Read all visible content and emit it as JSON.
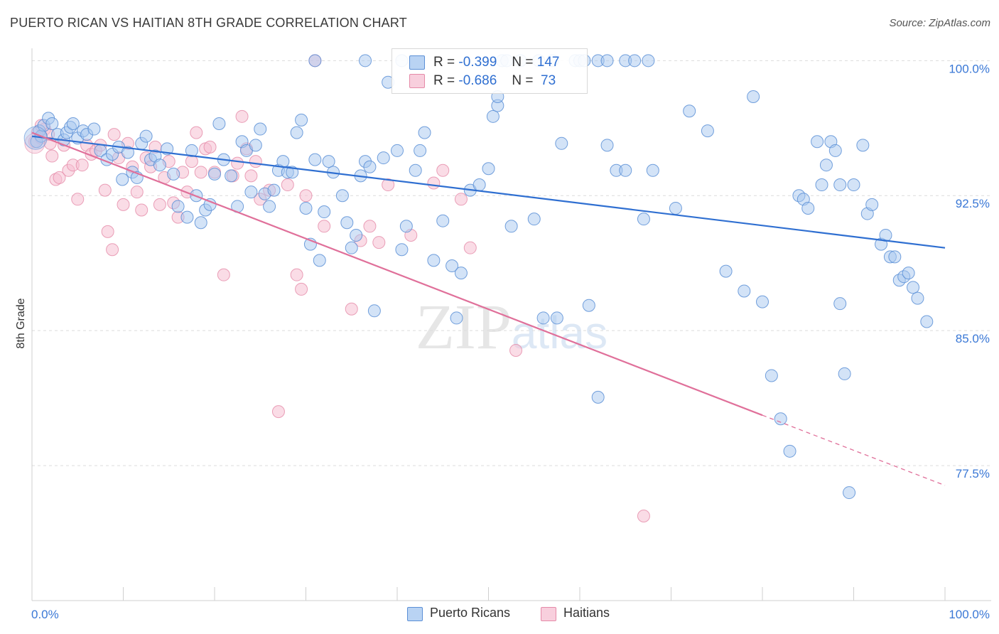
{
  "title": "PUERTO RICAN VS HAITIAN 8TH GRADE CORRELATION CHART",
  "source": "Source: ZipAtlas.com",
  "watermark": "ZIPatlas",
  "colors": {
    "blue_fill": "#a8c8f0",
    "blue_stroke": "#5b8fd6",
    "blue_line": "#2f6fd1",
    "pink_fill": "#f6bfd2",
    "pink_stroke": "#e58aa8",
    "pink_line": "#e0709a",
    "axis_text": "#3a78d6",
    "grid": "#dcdcdc"
  },
  "legend_top": {
    "rows": [
      {
        "r_label": "R =",
        "r_value": "-0.399",
        "n_label": "N =",
        "n_value": "147"
      },
      {
        "r_label": "R =",
        "r_value": "-0.686",
        "n_label": "N =",
        "n_value": " 73"
      }
    ]
  },
  "legend_bottom": [
    "Puerto Ricans",
    "Haitians"
  ],
  "chart_data": {
    "type": "scatter",
    "title": "PUERTO RICAN VS HAITIAN 8TH GRADE CORRELATION CHART",
    "xlabel": "",
    "ylabel": "8th Grade",
    "xlim": [
      0,
      100
    ],
    "ylim": [
      70.0,
      101.0
    ],
    "x_tick_labels": [
      "0.0%",
      "100.0%"
    ],
    "y_ticks": [
      100.0,
      92.5,
      85.0,
      77.5
    ],
    "y_tick_labels": [
      "100.0%",
      "92.5%",
      "85.0%",
      "77.5%"
    ],
    "grid": true,
    "legend_position": "top-center",
    "series": [
      {
        "name": "Puerto Ricans",
        "r": -0.399,
        "n": 147,
        "trend": {
          "x": [
            0,
            100
          ],
          "y": [
            95.8,
            89.6
          ]
        },
        "points": [
          [
            0.5,
            95.5
          ],
          [
            0.8,
            96.1
          ],
          [
            1.0,
            95.8
          ],
          [
            1.3,
            96.4
          ],
          [
            1.8,
            96.8
          ],
          [
            2.2,
            96.5
          ],
          [
            2.8,
            95.9
          ],
          [
            3.5,
            95.6
          ],
          [
            3.8,
            96.0
          ],
          [
            4.2,
            96.3
          ],
          [
            4.5,
            96.5
          ],
          [
            5.0,
            95.7
          ],
          [
            5.6,
            96.1
          ],
          [
            6.0,
            95.9
          ],
          [
            6.8,
            96.2
          ],
          [
            7.5,
            95.0
          ],
          [
            8.2,
            94.5
          ],
          [
            8.8,
            94.8
          ],
          [
            9.5,
            95.2
          ],
          [
            9.9,
            93.4
          ],
          [
            10.5,
            94.9
          ],
          [
            11.0,
            93.8
          ],
          [
            11.5,
            93.5
          ],
          [
            12.0,
            95.4
          ],
          [
            12.5,
            95.8
          ],
          [
            13.0,
            94.5
          ],
          [
            13.5,
            94.7
          ],
          [
            14.0,
            94.2
          ],
          [
            14.8,
            95.1
          ],
          [
            15.5,
            93.7
          ],
          [
            16.0,
            91.9
          ],
          [
            17.0,
            91.3
          ],
          [
            17.5,
            95.0
          ],
          [
            18.0,
            92.5
          ],
          [
            18.5,
            91.0
          ],
          [
            19.0,
            91.7
          ],
          [
            19.5,
            92.0
          ],
          [
            20.0,
            93.7
          ],
          [
            20.5,
            96.5
          ],
          [
            21.0,
            94.5
          ],
          [
            21.8,
            93.6
          ],
          [
            22.5,
            91.9
          ],
          [
            23.0,
            95.5
          ],
          [
            23.5,
            95.0
          ],
          [
            24.0,
            92.7
          ],
          [
            24.5,
            95.3
          ],
          [
            25.0,
            96.2
          ],
          [
            25.5,
            92.6
          ],
          [
            26.0,
            91.9
          ],
          [
            26.5,
            92.8
          ],
          [
            27.0,
            93.9
          ],
          [
            27.5,
            94.4
          ],
          [
            28.0,
            93.8
          ],
          [
            28.5,
            93.8
          ],
          [
            29.0,
            96.0
          ],
          [
            29.5,
            96.7
          ],
          [
            30.0,
            91.8
          ],
          [
            30.5,
            89.8
          ],
          [
            31.0,
            94.5
          ],
          [
            31.5,
            88.9
          ],
          [
            32.0,
            91.6
          ],
          [
            32.5,
            94.4
          ],
          [
            33.0,
            93.8
          ],
          [
            34.0,
            92.5
          ],
          [
            34.5,
            91.0
          ],
          [
            35.0,
            89.6
          ],
          [
            35.5,
            90.3
          ],
          [
            36.0,
            93.6
          ],
          [
            36.5,
            94.4
          ],
          [
            37.0,
            94.1
          ],
          [
            37.5,
            86.1
          ],
          [
            38.5,
            94.6
          ],
          [
            39.0,
            98.8
          ],
          [
            40.0,
            95.0
          ],
          [
            40.5,
            89.5
          ],
          [
            41.0,
            90.8
          ],
          [
            42.0,
            93.9
          ],
          [
            42.5,
            95.0
          ],
          [
            43.0,
            96.0
          ],
          [
            44.0,
            88.9
          ],
          [
            45.0,
            91.1
          ],
          [
            46.0,
            88.6
          ],
          [
            46.5,
            85.7
          ],
          [
            47.0,
            88.2
          ],
          [
            48.0,
            92.8
          ],
          [
            49.0,
            93.1
          ],
          [
            50.0,
            94.0
          ],
          [
            50.5,
            96.9
          ],
          [
            51.0,
            97.5
          ],
          [
            51.5,
            100.0
          ],
          [
            52.0,
            100.0
          ],
          [
            53.5,
            100.0
          ],
          [
            55.5,
            100.0
          ],
          [
            57.0,
            100.0
          ],
          [
            59.5,
            100.0
          ],
          [
            60.0,
            100.0
          ],
          [
            60.5,
            100.0
          ],
          [
            62.0,
            100.0
          ],
          [
            63.0,
            100.0
          ],
          [
            65.0,
            100.0
          ],
          [
            66.0,
            100.0
          ],
          [
            67.5,
            100.0
          ],
          [
            40.5,
            100.0
          ],
          [
            31.0,
            100.0
          ],
          [
            36.5,
            100.0
          ],
          [
            51.0,
            98.0
          ],
          [
            52.5,
            90.8
          ],
          [
            55.0,
            91.2
          ],
          [
            56.0,
            85.7
          ],
          [
            57.5,
            85.7
          ],
          [
            58.0,
            95.4
          ],
          [
            61.0,
            86.4
          ],
          [
            62.0,
            81.3
          ],
          [
            63.0,
            95.3
          ],
          [
            64.0,
            93.9
          ],
          [
            65.0,
            93.9
          ],
          [
            67.0,
            91.2
          ],
          [
            68.0,
            93.9
          ],
          [
            70.5,
            91.8
          ],
          [
            72.0,
            97.2
          ],
          [
            74.0,
            96.1
          ],
          [
            76.0,
            88.3
          ],
          [
            78.0,
            87.2
          ],
          [
            79.0,
            98.0
          ],
          [
            80.0,
            86.6
          ],
          [
            81.0,
            82.5
          ],
          [
            82.0,
            80.1
          ],
          [
            83.0,
            78.3
          ],
          [
            84.0,
            92.5
          ],
          [
            84.5,
            92.3
          ],
          [
            85.0,
            91.8
          ],
          [
            86.0,
            95.5
          ],
          [
            86.5,
            93.1
          ],
          [
            87.0,
            94.2
          ],
          [
            87.5,
            95.5
          ],
          [
            88.0,
            95.0
          ],
          [
            88.5,
            93.1
          ],
          [
            89.0,
            82.6
          ],
          [
            89.5,
            76.0
          ],
          [
            90.0,
            93.1
          ],
          [
            91.0,
            95.3
          ],
          [
            91.5,
            91.5
          ],
          [
            92.0,
            92.0
          ],
          [
            93.0,
            89.8
          ],
          [
            93.5,
            90.3
          ],
          [
            94.0,
            89.1
          ],
          [
            94.5,
            89.1
          ],
          [
            95.0,
            87.8
          ],
          [
            95.5,
            88.0
          ],
          [
            96.0,
            88.2
          ],
          [
            96.5,
            87.4
          ],
          [
            97.0,
            86.8
          ],
          [
            98.0,
            85.5
          ],
          [
            88.5,
            86.5
          ]
        ]
      },
      {
        "name": "Haitians",
        "r": -0.686,
        "n": 73,
        "trend": {
          "x": [
            0,
            80
          ],
          "y": [
            96.0,
            80.3
          ]
        },
        "trend_dashed": {
          "x": [
            80,
            100
          ],
          "y": [
            80.3,
            76.4
          ]
        },
        "points": [
          [
            0.3,
            95.5
          ],
          [
            0.6,
            96.0
          ],
          [
            1.0,
            95.7
          ],
          [
            1.4,
            96.2
          ],
          [
            1.8,
            95.9
          ],
          [
            2.2,
            94.7
          ],
          [
            2.6,
            93.4
          ],
          [
            3.0,
            93.5
          ],
          [
            3.5,
            95.3
          ],
          [
            4.0,
            93.9
          ],
          [
            4.5,
            94.2
          ],
          [
            5.0,
            92.3
          ],
          [
            5.5,
            94.2
          ],
          [
            6.0,
            95.3
          ],
          [
            6.5,
            94.8
          ],
          [
            7.0,
            95.0
          ],
          [
            7.5,
            95.3
          ],
          [
            8.0,
            92.8
          ],
          [
            8.3,
            90.5
          ],
          [
            8.8,
            89.5
          ],
          [
            9.0,
            95.9
          ],
          [
            9.5,
            94.6
          ],
          [
            10.0,
            92.0
          ],
          [
            10.5,
            95.4
          ],
          [
            11.0,
            94.1
          ],
          [
            11.5,
            92.7
          ],
          [
            12.0,
            91.7
          ],
          [
            12.5,
            94.6
          ],
          [
            13.0,
            94.1
          ],
          [
            13.5,
            95.2
          ],
          [
            14.0,
            92.0
          ],
          [
            14.5,
            93.5
          ],
          [
            15.0,
            94.4
          ],
          [
            15.5,
            92.1
          ],
          [
            16.0,
            91.3
          ],
          [
            16.5,
            93.8
          ],
          [
            17.0,
            92.7
          ],
          [
            17.5,
            94.4
          ],
          [
            18.0,
            96.0
          ],
          [
            18.5,
            93.8
          ],
          [
            19.0,
            95.1
          ],
          [
            19.5,
            95.2
          ],
          [
            20.0,
            93.8
          ],
          [
            21.0,
            88.1
          ],
          [
            22.0,
            93.6
          ],
          [
            22.5,
            94.3
          ],
          [
            23.0,
            96.9
          ],
          [
            23.5,
            95.1
          ],
          [
            24.0,
            93.6
          ],
          [
            24.5,
            94.4
          ],
          [
            25.0,
            92.3
          ],
          [
            26.0,
            92.8
          ],
          [
            27.0,
            80.5
          ],
          [
            28.0,
            93.1
          ],
          [
            29.0,
            88.1
          ],
          [
            29.5,
            87.3
          ],
          [
            30.0,
            92.5
          ],
          [
            31.0,
            100.0
          ],
          [
            32.0,
            90.8
          ],
          [
            35.0,
            86.2
          ],
          [
            36.0,
            90.0
          ],
          [
            37.0,
            90.8
          ],
          [
            38.0,
            89.9
          ],
          [
            39.0,
            93.1
          ],
          [
            41.5,
            90.3
          ],
          [
            44.0,
            93.2
          ],
          [
            45.0,
            93.9
          ],
          [
            47.0,
            92.3
          ],
          [
            48.0,
            89.6
          ],
          [
            53.0,
            83.9
          ],
          [
            67.0,
            74.7
          ],
          [
            2.0,
            95.4
          ],
          [
            1.0,
            96.4
          ]
        ]
      }
    ]
  }
}
